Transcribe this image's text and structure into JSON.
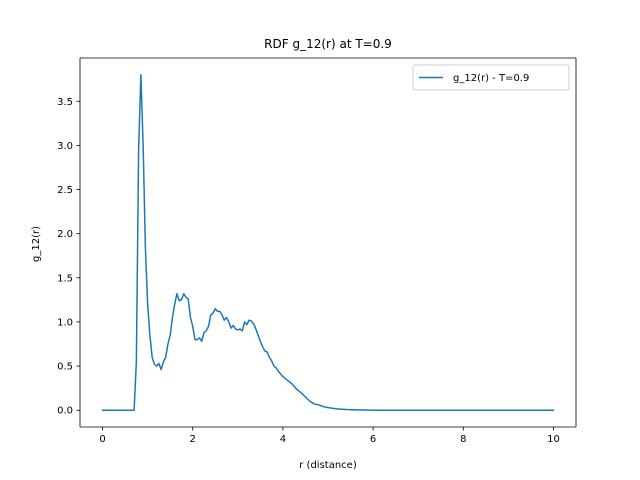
{
  "chart_data": {
    "type": "line",
    "title": "RDF g_12(r) at T=0.9",
    "xlabel": "r (distance)",
    "ylabel": "g_12(r)",
    "xlim": [
      -0.5,
      10.5
    ],
    "ylim": [
      -0.19,
      3.99
    ],
    "xticks": [
      0,
      2,
      4,
      6,
      8,
      10
    ],
    "xtick_labels": [
      "0",
      "2",
      "4",
      "6",
      "8",
      "10"
    ],
    "yticks": [
      0.0,
      0.5,
      1.0,
      1.5,
      2.0,
      2.5,
      3.0,
      3.5
    ],
    "ytick_labels": [
      "0.0",
      "0.5",
      "1.0",
      "1.5",
      "2.0",
      "2.5",
      "3.0",
      "3.5"
    ],
    "grid": false,
    "legend_position": "upper right",
    "series": [
      {
        "name": "g_12(r) - T=0.9",
        "color": "#1f77b4",
        "x": [
          0.0,
          0.7,
          0.75,
          0.8,
          0.85,
          0.9,
          0.95,
          1.0,
          1.05,
          1.1,
          1.15,
          1.2,
          1.25,
          1.3,
          1.35,
          1.4,
          1.45,
          1.5,
          1.55,
          1.6,
          1.65,
          1.7,
          1.75,
          1.8,
          1.85,
          1.9,
          1.95,
          2.0,
          2.05,
          2.1,
          2.15,
          2.2,
          2.25,
          2.3,
          2.35,
          2.4,
          2.45,
          2.5,
          2.55,
          2.6,
          2.65,
          2.7,
          2.75,
          2.8,
          2.85,
          2.9,
          2.95,
          3.0,
          3.05,
          3.1,
          3.15,
          3.2,
          3.25,
          3.3,
          3.35,
          3.4,
          3.45,
          3.5,
          3.55,
          3.6,
          3.65,
          3.7,
          3.75,
          3.8,
          3.85,
          3.9,
          4.0,
          4.1,
          4.2,
          4.3,
          4.4,
          4.5,
          4.6,
          4.7,
          4.8,
          4.9,
          5.0,
          5.2,
          5.4,
          5.6,
          5.8,
          6.0,
          7.0,
          8.0,
          9.0,
          10.0
        ],
        "y": [
          0.0,
          0.0,
          0.55,
          2.95,
          3.8,
          3.0,
          1.85,
          1.2,
          0.85,
          0.6,
          0.52,
          0.5,
          0.53,
          0.46,
          0.55,
          0.6,
          0.75,
          0.85,
          1.05,
          1.2,
          1.32,
          1.24,
          1.25,
          1.32,
          1.28,
          1.26,
          1.05,
          0.95,
          0.8,
          0.8,
          0.82,
          0.78,
          0.88,
          0.9,
          0.95,
          1.08,
          1.1,
          1.15,
          1.12,
          1.12,
          1.08,
          1.02,
          1.05,
          1.0,
          0.93,
          0.96,
          0.92,
          0.91,
          0.92,
          0.9,
          1.0,
          0.97,
          1.02,
          1.01,
          0.98,
          0.92,
          0.85,
          0.78,
          0.72,
          0.67,
          0.66,
          0.6,
          0.56,
          0.5,
          0.48,
          0.44,
          0.38,
          0.34,
          0.3,
          0.24,
          0.2,
          0.15,
          0.1,
          0.07,
          0.06,
          0.04,
          0.03,
          0.015,
          0.008,
          0.004,
          0.002,
          0.0,
          0.0,
          0.0,
          0.0,
          0.0
        ]
      }
    ]
  }
}
